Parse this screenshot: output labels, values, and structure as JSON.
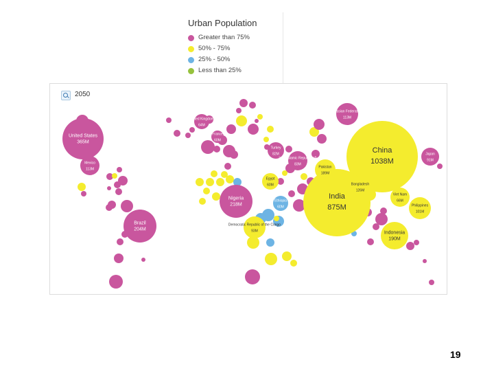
{
  "legend": {
    "title": "Urban Population",
    "items": [
      {
        "label": "Greater than 75%",
        "color": "#c9569e"
      },
      {
        "label": "50% - 75%",
        "color": "#f4ec2e"
      },
      {
        "label": "25% - 50%",
        "color": "#6db4e4"
      },
      {
        "label": "Less than 25%",
        "color": "#96c23d"
      }
    ]
  },
  "map": {
    "year": "2050",
    "countries": [
      {
        "name": "United States",
        "value": "365M",
        "category": 0
      },
      {
        "name": "Mexico",
        "value": "113M",
        "category": 0
      },
      {
        "name": "Brazil",
        "value": "204M",
        "category": 0
      },
      {
        "name": "United Kingdom",
        "value": "64M",
        "category": 0
      },
      {
        "name": "France",
        "value": "60M",
        "category": 0
      },
      {
        "name": "Turkey",
        "value": "82M",
        "category": 0
      },
      {
        "name": "Iran (Islamic Republic of)",
        "value": "83M",
        "category": 0
      },
      {
        "name": "Russian Federation",
        "value": "113M",
        "category": 0
      },
      {
        "name": "China",
        "value": "1038M",
        "category": 1
      },
      {
        "name": "Japan",
        "value": "91M",
        "category": 0
      },
      {
        "name": "Pakistan",
        "value": "189M",
        "category": 1
      },
      {
        "name": "India",
        "value": "875M",
        "category": 1
      },
      {
        "name": "Bangladesh",
        "value": "126M",
        "category": 1
      },
      {
        "name": "Viet Nam",
        "value": "66M",
        "category": 1
      },
      {
        "name": "Philippines",
        "value": "101M",
        "category": 1
      },
      {
        "name": "Indonesia",
        "value": "190M",
        "category": 1
      },
      {
        "name": "Egypt",
        "value": "60M",
        "category": 1
      },
      {
        "name": "Nigeria",
        "value": "218M",
        "category": 0
      },
      {
        "name": "Ethiopia",
        "value": "60M",
        "category": 2
      },
      {
        "name": "Democratic Republic of the Congo",
        "value": "93M",
        "category": 1
      }
    ]
  },
  "page_number": "19"
}
